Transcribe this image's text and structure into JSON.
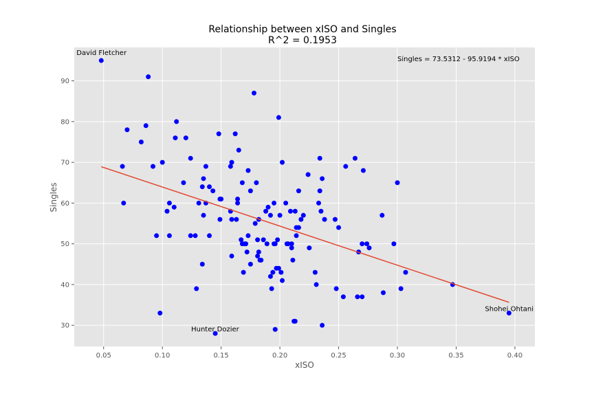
{
  "chart_data": {
    "type": "scatter",
    "title": "Relationship between xISO and Singles",
    "subtitle": "R^2 = 0.1953",
    "xlabel": "xISO",
    "ylabel": "Singles",
    "xlim": [
      0.025,
      0.417
    ],
    "ylim": [
      24.8,
      98.2
    ],
    "xticks": [
      "0.05",
      "0.10",
      "0.15",
      "0.20",
      "0.25",
      "0.30",
      "0.35",
      "0.40"
    ],
    "yticks": [
      "30",
      "40",
      "50",
      "60",
      "70",
      "80",
      "90"
    ],
    "grid": true,
    "equation": "Singles = 73.5312 - 95.9194 * xISO",
    "regression": {
      "intercept": 73.5312,
      "slope": -95.9194,
      "x_range": [
        0.048,
        0.395
      ]
    },
    "labeled_points": [
      {
        "label": "David Fletcher",
        "x": 0.048,
        "y": 95
      },
      {
        "label": "Hunter Dozier",
        "x": 0.145,
        "y": 28
      },
      {
        "label": "Shohei Ohtani",
        "x": 0.395,
        "y": 33
      }
    ],
    "points": [
      [
        0.048,
        95
      ],
      [
        0.066,
        69
      ],
      [
        0.067,
        60
      ],
      [
        0.07,
        78
      ],
      [
        0.082,
        75
      ],
      [
        0.086,
        79
      ],
      [
        0.088,
        91
      ],
      [
        0.092,
        69
      ],
      [
        0.095,
        52
      ],
      [
        0.098,
        33
      ],
      [
        0.1,
        70
      ],
      [
        0.104,
        58
      ],
      [
        0.106,
        52
      ],
      [
        0.106,
        60
      ],
      [
        0.11,
        59
      ],
      [
        0.111,
        76
      ],
      [
        0.112,
        80
      ],
      [
        0.118,
        65
      ],
      [
        0.12,
        76
      ],
      [
        0.124,
        71
      ],
      [
        0.124,
        52
      ],
      [
        0.128,
        52
      ],
      [
        0.129,
        39
      ],
      [
        0.131,
        60
      ],
      [
        0.134,
        64
      ],
      [
        0.134,
        45
      ],
      [
        0.135,
        66
      ],
      [
        0.135,
        57
      ],
      [
        0.137,
        69
      ],
      [
        0.137,
        60
      ],
      [
        0.14,
        64
      ],
      [
        0.14,
        52
      ],
      [
        0.143,
        63
      ],
      [
        0.145,
        28
      ],
      [
        0.148,
        77
      ],
      [
        0.149,
        61
      ],
      [
        0.149,
        56
      ],
      [
        0.15,
        61
      ],
      [
        0.158,
        58
      ],
      [
        0.158,
        69
      ],
      [
        0.159,
        70
      ],
      [
        0.159,
        56
      ],
      [
        0.159,
        47
      ],
      [
        0.162,
        77
      ],
      [
        0.163,
        56
      ],
      [
        0.164,
        61
      ],
      [
        0.164,
        60
      ],
      [
        0.165,
        73
      ],
      [
        0.167,
        51
      ],
      [
        0.168,
        65
      ],
      [
        0.168,
        50
      ],
      [
        0.169,
        43
      ],
      [
        0.17,
        50
      ],
      [
        0.171,
        50
      ],
      [
        0.172,
        48
      ],
      [
        0.173,
        52
      ],
      [
        0.173,
        68
      ],
      [
        0.175,
        63
      ],
      [
        0.175,
        45
      ],
      [
        0.178,
        87
      ],
      [
        0.179,
        55
      ],
      [
        0.18,
        65
      ],
      [
        0.181,
        51
      ],
      [
        0.181,
        47
      ],
      [
        0.182,
        48
      ],
      [
        0.182,
        56
      ],
      [
        0.183,
        46
      ],
      [
        0.184,
        46
      ],
      [
        0.186,
        51
      ],
      [
        0.188,
        58
      ],
      [
        0.189,
        50
      ],
      [
        0.19,
        59
      ],
      [
        0.192,
        57
      ],
      [
        0.192,
        42
      ],
      [
        0.193,
        39
      ],
      [
        0.194,
        43
      ],
      [
        0.195,
        60
      ],
      [
        0.195,
        50
      ],
      [
        0.196,
        50
      ],
      [
        0.196,
        29
      ],
      [
        0.197,
        44
      ],
      [
        0.198,
        51
      ],
      [
        0.199,
        44
      ],
      [
        0.199,
        81
      ],
      [
        0.2,
        57
      ],
      [
        0.201,
        43
      ],
      [
        0.202,
        41
      ],
      [
        0.202,
        70
      ],
      [
        0.205,
        60
      ],
      [
        0.206,
        50
      ],
      [
        0.207,
        50
      ],
      [
        0.209,
        58
      ],
      [
        0.21,
        49
      ],
      [
        0.21,
        50
      ],
      [
        0.211,
        46
      ],
      [
        0.212,
        31
      ],
      [
        0.213,
        31
      ],
      [
        0.213,
        58
      ],
      [
        0.214,
        54
      ],
      [
        0.214,
        52
      ],
      [
        0.216,
        54
      ],
      [
        0.216,
        63
      ],
      [
        0.218,
        56
      ],
      [
        0.22,
        57
      ],
      [
        0.224,
        67
      ],
      [
        0.225,
        49
      ],
      [
        0.23,
        43
      ],
      [
        0.231,
        40
      ],
      [
        0.233,
        60
      ],
      [
        0.234,
        71
      ],
      [
        0.234,
        63
      ],
      [
        0.235,
        58
      ],
      [
        0.236,
        30
      ],
      [
        0.236,
        66
      ],
      [
        0.238,
        56
      ],
      [
        0.247,
        56
      ],
      [
        0.248,
        39
      ],
      [
        0.25,
        54
      ],
      [
        0.254,
        37
      ],
      [
        0.256,
        69
      ],
      [
        0.264,
        71
      ],
      [
        0.266,
        37
      ],
      [
        0.267,
        48
      ],
      [
        0.27,
        37
      ],
      [
        0.27,
        50
      ],
      [
        0.271,
        68
      ],
      [
        0.274,
        50
      ],
      [
        0.276,
        49
      ],
      [
        0.287,
        57
      ],
      [
        0.288,
        38
      ],
      [
        0.297,
        50
      ],
      [
        0.3,
        65
      ],
      [
        0.303,
        39
      ],
      [
        0.307,
        43
      ],
      [
        0.347,
        40
      ],
      [
        0.395,
        33
      ]
    ],
    "colors": {
      "point": "#0000ff",
      "line": "#e24a33",
      "plot_bg": "#e5e5e5",
      "grid": "#ffffff"
    }
  }
}
